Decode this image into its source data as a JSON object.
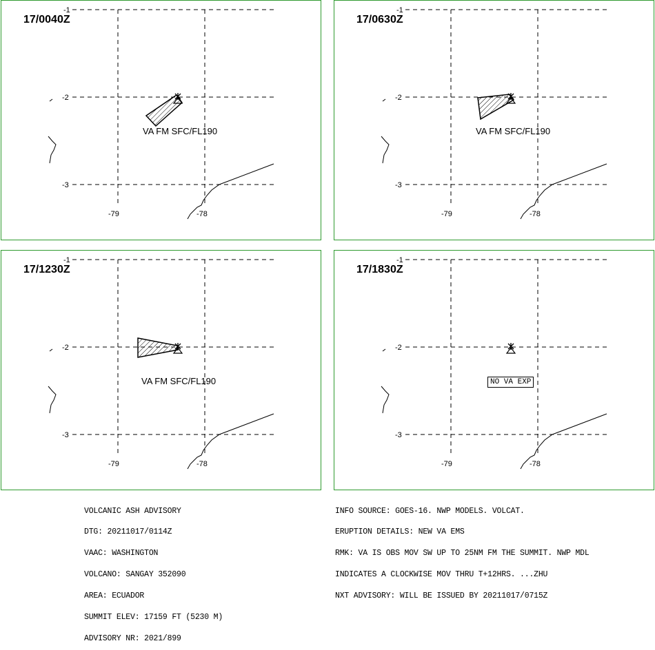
{
  "panels": [
    {
      "time": "17/0040Z",
      "label": "VA FM SFC/FL190",
      "ash": "a"
    },
    {
      "time": "17/0630Z",
      "label": "VA FM SFC/FL190",
      "ash": "b"
    },
    {
      "time": "17/1230Z",
      "label": "VA FM SFC/FL190",
      "ash": "c"
    },
    {
      "time": "17/1830Z",
      "label": "NO VA EXP",
      "ash": "none"
    }
  ],
  "ticks": {
    "lat_top": "-1",
    "lat_mid": "-2",
    "lat_bot": "-3",
    "lon_left": "-79",
    "lon_right": "-78"
  },
  "advisory_left": [
    "VOLCANIC ASH ADVISORY",
    "DTG: 20211017/0114Z",
    "VAAC: WASHINGTON",
    "VOLCANO: SANGAY 352090",
    "AREA: ECUADOR",
    "SUMMIT ELEV: 17159 FT (5230 M)",
    "ADVISORY NR: 2021/899"
  ],
  "advisory_right": [
    "INFO SOURCE: GOES-16. NWP MODELS. VOLCAT.",
    "ERUPTION DETAILS: NEW VA EMS",
    "RMK: VA IS OBS MOV SW UP TO 25NM FM THE SUMMIT. NWP MDL",
    "INDICATES A CLOCKWISE MOV THRU T+12HRS. ...ZHU",
    "NXT ADVISORY: WILL BE ISSUED BY 20211017/0715Z"
  ],
  "colors": {
    "panel_border": "#2e9a2e",
    "lines": "#000000"
  }
}
